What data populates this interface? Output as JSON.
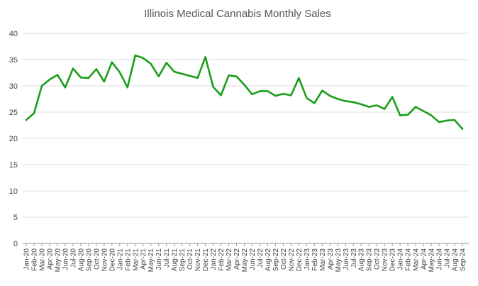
{
  "chart_data": {
    "type": "line",
    "title": "Illinois Medical Cannabis Monthly Sales",
    "xlabel": "",
    "ylabel": "",
    "ylim": [
      0,
      40
    ],
    "yticks": [
      0,
      5,
      10,
      15,
      20,
      25,
      30,
      35,
      40
    ],
    "grid": true,
    "legend": "none",
    "categories": [
      "Jan-20",
      "Feb-20",
      "Mar-20",
      "Apr-20",
      "May-20",
      "Jun-20",
      "Jul-20",
      "Aug-20",
      "Sep-20",
      "Oct-20",
      "Nov-20",
      "Dec-20",
      "Jan-21",
      "Feb-21",
      "Mar-21",
      "Apr-21",
      "May-21",
      "Jun-21",
      "Jul-21",
      "Aug-21",
      "Sep-21",
      "Oct-21",
      "Nov-21",
      "Dec-21",
      "Jan-22",
      "Feb-22",
      "Mar-22",
      "Apr-22",
      "May-22",
      "Jun-22",
      "Jul-22",
      "Aug-22",
      "Sep-22",
      "Oct-22",
      "Nov-22",
      "Dec-22",
      "Jan-23",
      "Feb-23",
      "Mar-23",
      "Apr-23",
      "May-23",
      "Jun-23",
      "Jul-23",
      "Aug-23",
      "Sep-23",
      "Oct-23",
      "Nov-23",
      "Dec-23",
      "Jan-24",
      "Feb-24",
      "Mar-24",
      "Apr-24",
      "May-24",
      "Jun-24",
      "Jul-24",
      "Aug-24",
      "Sep-24"
    ],
    "series": [
      {
        "name": "Monthly Sales",
        "color": "#1a9e1a",
        "values": [
          23.5,
          24.8,
          30.0,
          31.2,
          32.1,
          29.7,
          33.3,
          31.6,
          31.5,
          33.2,
          30.8,
          34.5,
          32.6,
          29.7,
          35.8,
          35.3,
          34.2,
          31.8,
          34.4,
          32.7,
          32.3,
          31.9,
          31.5,
          35.5,
          29.8,
          28.2,
          32.0,
          31.8,
          30.2,
          28.4,
          29.0,
          29.0,
          28.1,
          28.5,
          28.2,
          31.5,
          27.7,
          26.7,
          29.1,
          28.1,
          27.5,
          27.1,
          26.9,
          26.5,
          26.0,
          26.3,
          25.6,
          27.9,
          24.4,
          24.5,
          26.0,
          25.2,
          24.4,
          23.1,
          23.4,
          23.5,
          21.8
        ]
      }
    ]
  }
}
